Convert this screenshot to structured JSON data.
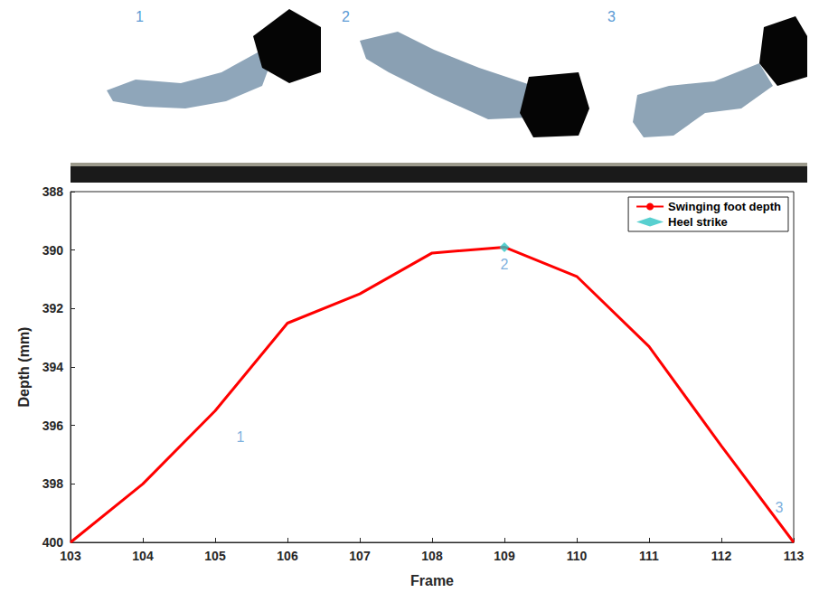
{
  "chart_data": {
    "type": "line",
    "x_label": "Frame",
    "y_label": "Depth (mm)",
    "panels": [
      "1",
      "2",
      "3"
    ],
    "x": [
      103,
      104,
      105,
      106,
      107,
      108,
      109,
      110,
      111,
      112,
      113
    ],
    "series": [
      {
        "name": "Swinging foot depth",
        "type": "line",
        "color": "#ff0000",
        "line_style": "solid",
        "values": [
          400,
          398.0,
          395.5,
          392.5,
          391.5,
          390.1,
          389.9,
          390.9,
          393.3,
          396.7,
          400
        ]
      },
      {
        "name": "Heel strike",
        "type": "scatter",
        "color": "#2ec4c4",
        "marker": "diamond",
        "x": [
          109
        ],
        "values": [
          389.9
        ]
      }
    ],
    "annotations": [
      {
        "text": "1",
        "x": 105.35,
        "y": 396.4
      },
      {
        "text": "2",
        "x": 109,
        "y": 390.5
      },
      {
        "text": "3",
        "x": 112.8,
        "y": 398.8
      }
    ],
    "xlim": [
      103,
      113
    ],
    "xticks": [
      103,
      104,
      105,
      106,
      107,
      108,
      109,
      110,
      111,
      112,
      113
    ],
    "ylim": [
      400,
      388
    ],
    "yticks": [
      388,
      390,
      392,
      394,
      396,
      398,
      400
    ],
    "grid": false,
    "legend": "upper right"
  }
}
